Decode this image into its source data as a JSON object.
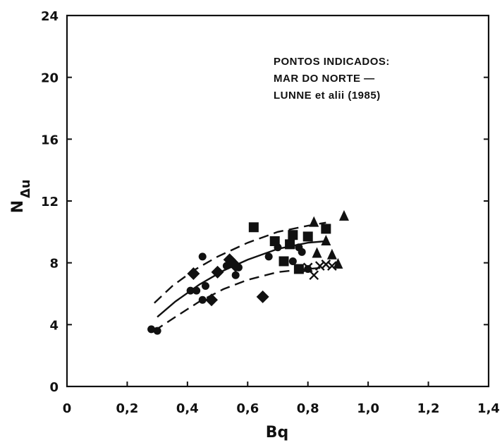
{
  "chart_data": {
    "type": "scatter",
    "xlabel": "Bq",
    "ylabel_main": "N",
    "ylabel_sub": "Δu",
    "xlim": [
      0,
      1.4
    ],
    "ylim": [
      0,
      24
    ],
    "x_ticks": [
      0,
      0.2,
      0.4,
      0.6,
      0.8,
      1.0,
      1.2,
      1.4
    ],
    "x_tick_labels": [
      "0",
      "0,2",
      "0,4",
      "0,6",
      "0,8",
      "1,0",
      "1,2",
      "1,4"
    ],
    "y_ticks": [
      0,
      4,
      8,
      12,
      16,
      20,
      24
    ],
    "y_tick_labels": [
      "0",
      "4",
      "8",
      "12",
      "16",
      "20",
      "24"
    ],
    "annotation_lines": [
      "PONTOS INDICADOS:",
      "MAR DO NORTE —",
      "LUNNE et alii (1985)"
    ],
    "series": [
      {
        "marker": "circle",
        "points": [
          [
            0.28,
            3.7
          ],
          [
            0.3,
            3.6
          ],
          [
            0.41,
            6.2
          ],
          [
            0.43,
            6.2
          ],
          [
            0.45,
            5.6
          ],
          [
            0.45,
            8.4
          ],
          [
            0.46,
            6.5
          ],
          [
            0.53,
            7.8
          ],
          [
            0.56,
            7.2
          ],
          [
            0.57,
            7.7
          ],
          [
            0.67,
            8.4
          ],
          [
            0.7,
            9.0
          ],
          [
            0.75,
            8.1
          ],
          [
            0.77,
            9.0
          ],
          [
            0.78,
            8.7
          ],
          [
            0.8,
            7.6
          ]
        ]
      },
      {
        "marker": "square",
        "points": [
          [
            0.62,
            10.3
          ],
          [
            0.69,
            9.4
          ],
          [
            0.72,
            8.1
          ],
          [
            0.74,
            9.2
          ],
          [
            0.75,
            9.8
          ],
          [
            0.77,
            7.6
          ],
          [
            0.8,
            9.7
          ],
          [
            0.86,
            10.2
          ]
        ]
      },
      {
        "marker": "diamond",
        "points": [
          [
            0.42,
            7.3
          ],
          [
            0.48,
            5.6
          ],
          [
            0.5,
            7.4
          ],
          [
            0.54,
            8.2
          ],
          [
            0.56,
            7.8
          ],
          [
            0.65,
            5.8
          ]
        ]
      },
      {
        "marker": "triangle",
        "points": [
          [
            0.82,
            10.6
          ],
          [
            0.83,
            8.6
          ],
          [
            0.86,
            9.4
          ],
          [
            0.88,
            8.5
          ],
          [
            0.9,
            7.9
          ],
          [
            0.92,
            11.0
          ]
        ]
      },
      {
        "marker": "cross",
        "points": [
          [
            0.8,
            7.7
          ],
          [
            0.82,
            7.2
          ],
          [
            0.84,
            7.8
          ],
          [
            0.86,
            7.9
          ],
          [
            0.88,
            7.8
          ]
        ]
      }
    ],
    "curves": [
      {
        "style": "dashed",
        "points": [
          [
            0.29,
            5.4
          ],
          [
            0.35,
            6.5
          ],
          [
            0.42,
            7.5
          ],
          [
            0.5,
            8.4
          ],
          [
            0.6,
            9.3
          ],
          [
            0.7,
            10.0
          ],
          [
            0.8,
            10.4
          ],
          [
            0.86,
            10.6
          ]
        ]
      },
      {
        "style": "solid",
        "points": [
          [
            0.3,
            4.5
          ],
          [
            0.36,
            5.5
          ],
          [
            0.44,
            6.6
          ],
          [
            0.52,
            7.5
          ],
          [
            0.6,
            8.2
          ],
          [
            0.7,
            8.9
          ],
          [
            0.8,
            9.3
          ],
          [
            0.86,
            9.4
          ]
        ]
      },
      {
        "style": "dashed",
        "points": [
          [
            0.29,
            3.6
          ],
          [
            0.36,
            4.5
          ],
          [
            0.44,
            5.5
          ],
          [
            0.52,
            6.3
          ],
          [
            0.6,
            6.9
          ],
          [
            0.7,
            7.4
          ],
          [
            0.8,
            7.6
          ],
          [
            0.86,
            7.7
          ]
        ]
      }
    ]
  }
}
